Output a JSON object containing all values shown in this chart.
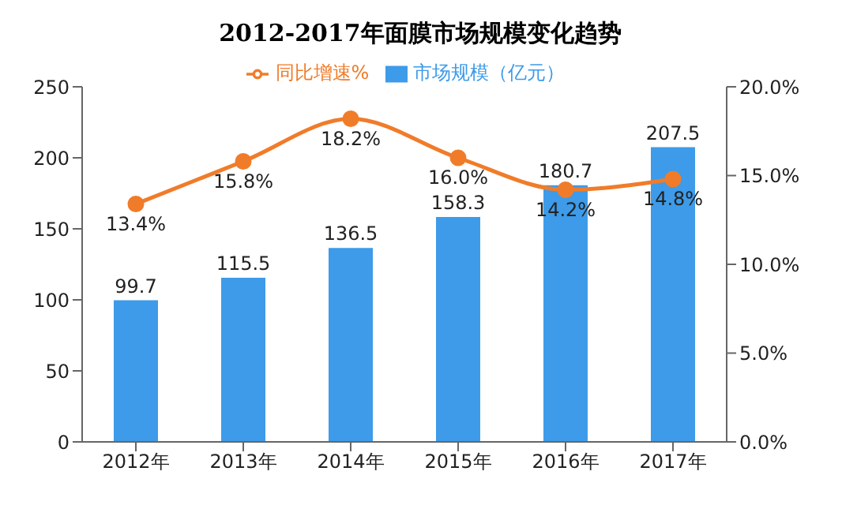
{
  "chart_data": {
    "type": "bar",
    "title": "2012-2017年面膜市场规模变化趋势",
    "categories": [
      "2012年",
      "2013年",
      "2014年",
      "2015年",
      "2016年",
      "2017年"
    ],
    "series": [
      {
        "name": "市场规模（亿元）",
        "color": "#3d9be9",
        "values": [
          99.7,
          115.5,
          136.5,
          158.3,
          180.7,
          207.5
        ],
        "value_labels": [
          "99.7",
          "115.5",
          "136.5",
          "158.3",
          "180.7",
          "207.5"
        ]
      },
      {
        "name": "同比增速%",
        "type": "line",
        "axis": "y2",
        "color": "#f07c2a",
        "values": [
          13.4,
          15.8,
          18.2,
          16.0,
          14.2,
          14.8
        ],
        "value_labels": [
          "13.4%",
          "15.8%",
          "18.2%",
          "16.0%",
          "14.2%",
          "14.8%"
        ]
      }
    ],
    "ylim": [
      0,
      250
    ],
    "yticks": [
      0,
      50,
      100,
      150,
      200,
      250
    ],
    "y2lim": [
      0,
      20
    ],
    "y2ticks": [
      {
        "value": 0,
        "label": "0.0%"
      },
      {
        "value": 5,
        "label": "5.0%"
      },
      {
        "value": 10,
        "label": "10.0%"
      },
      {
        "value": 15,
        "label": "15.0%"
      },
      {
        "value": 20,
        "label": "20.0%"
      }
    ],
    "legend": "top",
    "marker": "circle",
    "grid": false
  }
}
